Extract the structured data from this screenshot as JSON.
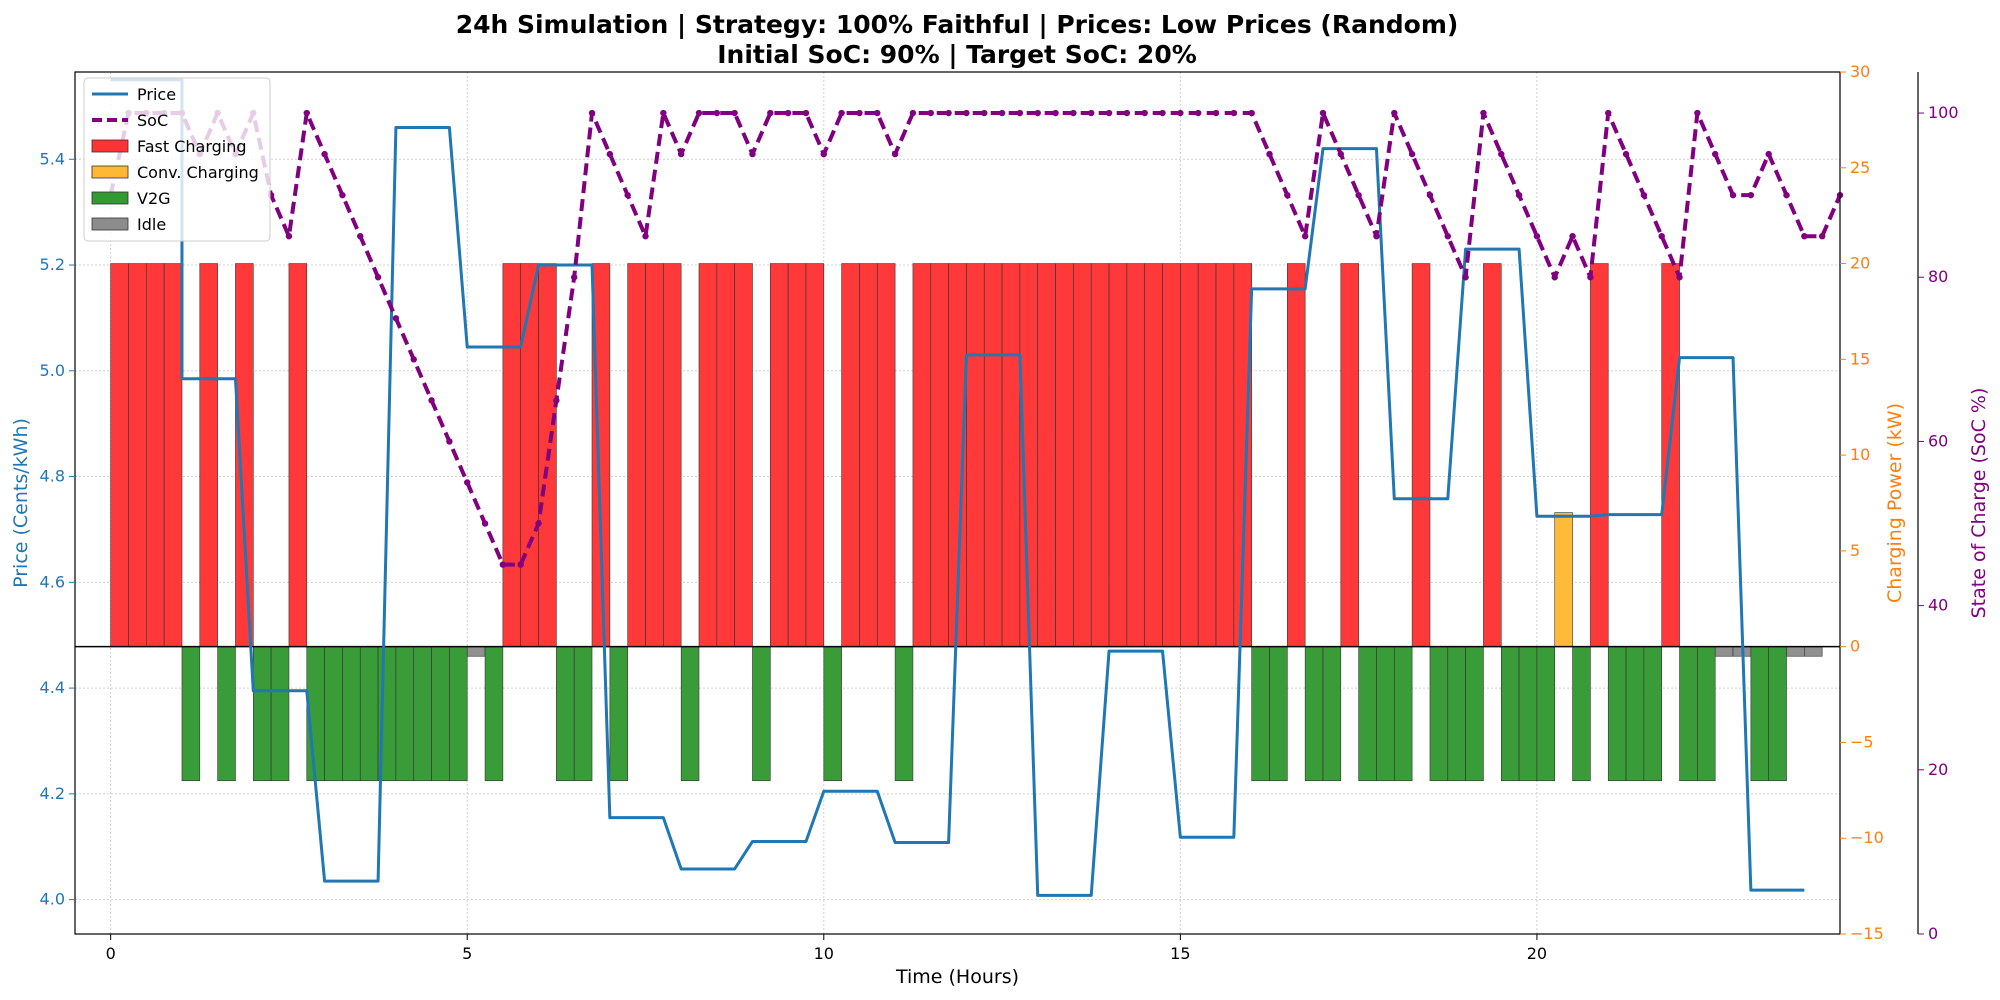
{
  "chart_data": {
    "type": "bar",
    "title_line1": "24h Simulation | Strategy: 100% Faithful | Prices: Low Prices (Random)",
    "title_line2": "Initial SoC: 90% | Target SoC: 20%",
    "xlabel": "Time (Hours)",
    "ylabel_left": "Price (Cents/kWh)",
    "ylabel_right": "Charging Power (kW)",
    "ylabel_far_right": "State of Charge (SoC %)",
    "xlim": [
      -0.5,
      24.25
    ],
    "ylim_price": [
      3.935,
      5.565
    ],
    "ylim_power": [
      -15,
      30
    ],
    "ylim_soc": [
      0,
      105
    ],
    "xticks": [
      0,
      5,
      10,
      15,
      20
    ],
    "yticks_price": [
      4.0,
      4.2,
      4.4,
      4.6,
      4.8,
      5.0,
      5.2,
      5.4
    ],
    "yticks_power": [
      -15,
      -10,
      -5,
      0,
      5,
      10,
      15,
      20,
      25,
      30
    ],
    "yticks_soc": [
      0,
      20,
      40,
      60,
      80,
      100
    ],
    "grid": true,
    "legend_position": "upper-left",
    "colors": {
      "price": "#1f77b4",
      "soc": "#800080",
      "fast": "#ff3333",
      "conv": "#ffb833",
      "v2g": "#339933",
      "idle": "#8c8c8c",
      "power_axis": "#ff7f0e"
    },
    "legend": [
      {
        "label": "Price",
        "kind": "line",
        "key": "price"
      },
      {
        "label": "SoC",
        "kind": "dash",
        "key": "soc"
      },
      {
        "label": "Fast Charging",
        "kind": "box",
        "key": "fast"
      },
      {
        "label": "Conv. Charging",
        "kind": "box",
        "key": "conv"
      },
      {
        "label": "V2G",
        "kind": "box",
        "key": "v2g"
      },
      {
        "label": "Idle",
        "kind": "box",
        "key": "idle"
      }
    ],
    "interval_hours": 0.25,
    "actions": [
      "F",
      "F",
      "F",
      "F",
      "V",
      "F",
      "V",
      "F",
      "V",
      "V",
      "F",
      "V",
      "V",
      "V",
      "V",
      "V",
      "V",
      "V",
      "V",
      "V",
      "I",
      "V",
      "F",
      "F",
      "F",
      "V",
      "V",
      "F",
      "V",
      "F",
      "F",
      "F",
      "V",
      "F",
      "F",
      "F",
      "V",
      "F",
      "F",
      "F",
      "V",
      "F",
      "F",
      "F",
      "V",
      "F",
      "F",
      "F",
      "F",
      "F",
      "F",
      "F",
      "F",
      "F",
      "F",
      "F",
      "F",
      "F",
      "F",
      "F",
      "F",
      "F",
      "F",
      "F",
      "V",
      "V",
      "F",
      "V",
      "V",
      "F",
      "V",
      "V",
      "V",
      "F",
      "V",
      "V",
      "V",
      "F",
      "V",
      "V",
      "V",
      "C",
      "V",
      "F",
      "V",
      "V",
      "V",
      "F",
      "V",
      "V",
      "I",
      "I",
      "V",
      "V",
      "I",
      "I"
    ],
    "power_levels": {
      "F": 20,
      "C": 7,
      "V": -7,
      "I": -0.5
    },
    "price_steps": [
      {
        "start": 0,
        "end": 1,
        "value": 5.55
      },
      {
        "start": 1,
        "end": 1.75,
        "value": 4.985
      },
      {
        "start": 2,
        "end": 2.75,
        "value": 4.395
      },
      {
        "start": 3,
        "end": 3.75,
        "value": 4.035
      },
      {
        "start": 4,
        "end": 4.75,
        "value": 5.46
      },
      {
        "start": 5,
        "end": 5.75,
        "value": 5.045
      },
      {
        "start": 6,
        "end": 6.75,
        "value": 5.2
      },
      {
        "start": 7,
        "end": 7.75,
        "value": 4.155
      },
      {
        "start": 8,
        "end": 8.75,
        "value": 4.058
      },
      {
        "start": 9,
        "end": 9.75,
        "value": 4.11
      },
      {
        "start": 10,
        "end": 10.75,
        "value": 4.205
      },
      {
        "start": 11,
        "end": 11.75,
        "value": 4.108
      },
      {
        "start": 12,
        "end": 12.75,
        "value": 5.03
      },
      {
        "start": 13,
        "end": 13.75,
        "value": 4.008
      },
      {
        "start": 14,
        "end": 14.75,
        "value": 4.47
      },
      {
        "start": 15,
        "end": 15.75,
        "value": 4.118
      },
      {
        "start": 16,
        "end": 16.75,
        "value": 5.155
      },
      {
        "start": 17,
        "end": 17.75,
        "value": 5.42
      },
      {
        "start": 18,
        "end": 18.75,
        "value": 4.758
      },
      {
        "start": 19,
        "end": 19.75,
        "value": 5.23
      },
      {
        "start": 20,
        "end": 20.75,
        "value": 4.725
      },
      {
        "start": 21,
        "end": 21.75,
        "value": 4.728
      },
      {
        "start": 22,
        "end": 22.75,
        "value": 5.025
      },
      {
        "start": 23,
        "end": 23.75,
        "value": 4.018
      }
    ],
    "soc": [
      90,
      100,
      100,
      100,
      100,
      95,
      100,
      95,
      100,
      90,
      85,
      100,
      95,
      90,
      85,
      80,
      75,
      70,
      65,
      60,
      55,
      50,
      45,
      45,
      50,
      65,
      80,
      100,
      95,
      90,
      85,
      100,
      95,
      100,
      100,
      100,
      95,
      100,
      100,
      100,
      95,
      100,
      100,
      100,
      95,
      100,
      100,
      100,
      100,
      100,
      100,
      100,
      100,
      100,
      100,
      100,
      100,
      100,
      100,
      100,
      100,
      100,
      100,
      100,
      100,
      95,
      90,
      85,
      100,
      95,
      90,
      85,
      100,
      95,
      90,
      85,
      80,
      100,
      95,
      90,
      85,
      80,
      85,
      80,
      100,
      95,
      90,
      85,
      80,
      100,
      95,
      90,
      90,
      95,
      90,
      85,
      85,
      90
    ]
  }
}
